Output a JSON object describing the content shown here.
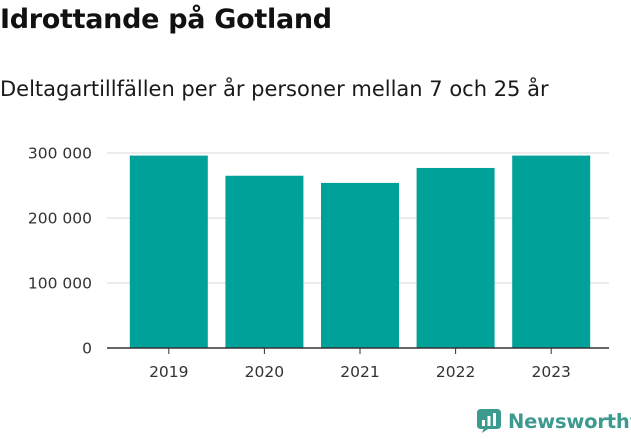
{
  "chart_data": {
    "type": "bar",
    "title": "Idrottande på Gotland",
    "subtitle": "Deltagartillfällen per år personer mellan 7 och 25 år",
    "categories": [
      "2019",
      "2020",
      "2021",
      "2022",
      "2023"
    ],
    "values": [
      296000,
      265000,
      254000,
      277000,
      296000
    ],
    "xlabel": "",
    "ylabel": "",
    "ylim": [
      0,
      300000
    ],
    "yticks": [
      0,
      100000,
      200000,
      300000
    ],
    "ytick_labels": [
      "0",
      "100 000",
      "200 000",
      "300 000"
    ],
    "grid": true,
    "bar_color": "#00a199"
  },
  "brand": {
    "name": "Newsworthy",
    "icon": "newsworthy-logo-icon",
    "color": "#3c9a8e"
  }
}
